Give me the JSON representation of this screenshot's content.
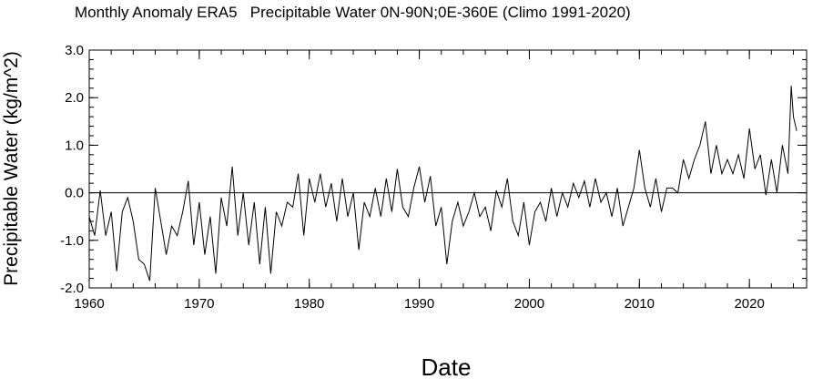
{
  "chart_data": {
    "type": "line",
    "title": "Monthly Anomaly ERA5   Precipitable Water 0N-90N;0E-360E (Climo 1991-2020)",
    "xlabel": "Date",
    "ylabel": "Precipitable Water (kg/m^2)",
    "xlim": [
      1960,
      2025.2
    ],
    "ylim": [
      -2.0,
      3.0
    ],
    "x_ticks": [
      1960,
      1970,
      1980,
      1990,
      2000,
      2010,
      2020
    ],
    "x_tick_labels": [
      "1960",
      "1970",
      "1980",
      "1990",
      "2000",
      "2010",
      "2020"
    ],
    "y_ticks": [
      -2.0,
      -1.0,
      0.0,
      1.0,
      2.0,
      3.0
    ],
    "y_tick_labels": [
      "-2.0",
      "-1.0",
      "0.0",
      "1.0",
      "2.0",
      "3.0"
    ],
    "reference_line_y": 0.0,
    "line_color": "#000000",
    "x": [
      1960.0,
      1960.5,
      1961.0,
      1961.5,
      1962.0,
      1962.5,
      1963.0,
      1963.5,
      1964.0,
      1964.5,
      1965.0,
      1965.5,
      1966.0,
      1966.5,
      1967.0,
      1967.5,
      1968.0,
      1968.5,
      1969.0,
      1969.5,
      1970.0,
      1970.5,
      1971.0,
      1971.5,
      1972.0,
      1972.5,
      1973.0,
      1973.5,
      1974.0,
      1974.5,
      1975.0,
      1975.5,
      1976.0,
      1976.5,
      1977.0,
      1977.5,
      1978.0,
      1978.5,
      1979.0,
      1979.5,
      1980.0,
      1980.5,
      1981.0,
      1981.5,
      1982.0,
      1982.5,
      1983.0,
      1983.5,
      1984.0,
      1984.5,
      1985.0,
      1985.5,
      1986.0,
      1986.5,
      1987.0,
      1987.5,
      1988.0,
      1988.5,
      1989.0,
      1989.5,
      1990.0,
      1990.5,
      1991.0,
      1991.5,
      1992.0,
      1992.5,
      1993.0,
      1993.5,
      1994.0,
      1994.5,
      1995.0,
      1995.5,
      1996.0,
      1996.5,
      1997.0,
      1997.5,
      1998.0,
      1998.5,
      1999.0,
      1999.5,
      2000.0,
      2000.5,
      2001.0,
      2001.5,
      2002.0,
      2002.5,
      2003.0,
      2003.5,
      2004.0,
      2004.5,
      2005.0,
      2005.5,
      2006.0,
      2006.5,
      2007.0,
      2007.5,
      2008.0,
      2008.5,
      2009.0,
      2009.5,
      2010.0,
      2010.5,
      2011.0,
      2011.5,
      2012.0,
      2012.5,
      2013.0,
      2013.5,
      2014.0,
      2014.5,
      2015.0,
      2015.5,
      2016.0,
      2016.5,
      2017.0,
      2017.5,
      2018.0,
      2018.5,
      2019.0,
      2019.5,
      2020.0,
      2020.5,
      2021.0,
      2021.5,
      2022.0,
      2022.5,
      2023.0,
      2023.5,
      2023.8,
      2024.0,
      2024.3
    ],
    "y": [
      -0.5,
      -0.9,
      0.05,
      -0.9,
      -0.4,
      -1.65,
      -0.4,
      -0.1,
      -0.6,
      -1.4,
      -1.5,
      -1.85,
      0.1,
      -0.6,
      -1.3,
      -0.7,
      -0.9,
      -0.4,
      0.25,
      -1.1,
      -0.2,
      -1.3,
      -0.5,
      -1.7,
      -0.1,
      -0.7,
      0.55,
      -0.9,
      0.0,
      -1.1,
      -0.2,
      -1.5,
      -0.3,
      -1.7,
      -0.4,
      -0.7,
      -0.2,
      -0.3,
      0.4,
      -0.9,
      0.3,
      -0.2,
      0.4,
      -0.3,
      0.2,
      -0.6,
      0.3,
      -0.5,
      0.0,
      -1.2,
      -0.2,
      -0.5,
      0.1,
      -0.5,
      0.3,
      -0.4,
      0.5,
      -0.3,
      -0.5,
      0.1,
      0.55,
      -0.2,
      0.35,
      -0.7,
      -0.3,
      -1.5,
      -0.6,
      -0.2,
      -0.7,
      -0.4,
      0.0,
      -0.5,
      -0.3,
      -0.8,
      0.05,
      -0.3,
      0.3,
      -0.6,
      -0.9,
      -0.2,
      -1.1,
      -0.4,
      -0.2,
      -0.6,
      0.1,
      -0.5,
      0.0,
      -0.3,
      0.2,
      -0.1,
      0.25,
      -0.3,
      0.3,
      -0.2,
      0.0,
      -0.5,
      0.1,
      -0.7,
      -0.3,
      0.1,
      0.9,
      0.1,
      -0.3,
      0.3,
      -0.4,
      0.1,
      0.1,
      0.0,
      0.7,
      0.3,
      0.7,
      1.0,
      1.5,
      0.4,
      1.0,
      0.4,
      0.7,
      0.4,
      0.8,
      0.3,
      1.35,
      0.5,
      0.8,
      -0.05,
      0.7,
      0.0,
      1.0,
      0.4,
      2.25,
      1.6,
      1.3
    ]
  }
}
